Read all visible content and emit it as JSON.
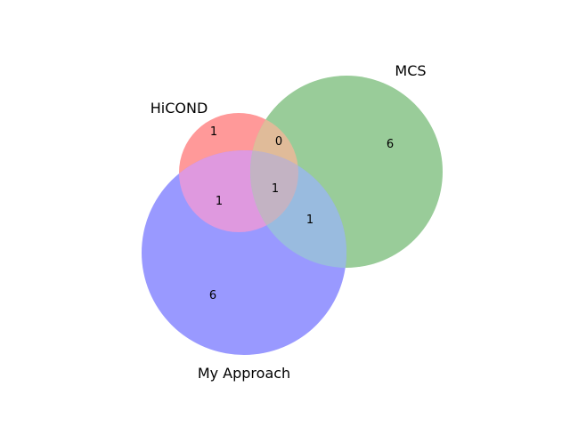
{
  "sets": [
    {
      "key": "hicond",
      "name": "HiCOND",
      "color": "#ff9999"
    },
    {
      "key": "mcs",
      "name": "MCS",
      "color": "#99cc99"
    },
    {
      "key": "approach",
      "name": "My Approach",
      "color": "#9999ff"
    }
  ],
  "overlap_colors": {
    "hicond_mcs": "#e0bb99",
    "hicond_approach": "#df99df",
    "mcs_approach": "#99bbdf",
    "all_three": "#c3b3c3"
  },
  "regions": {
    "hicond_only": "1",
    "mcs_only": "6",
    "approach_only": "6",
    "hicond_mcs": "0",
    "hicond_approach": "1",
    "mcs_approach": "1",
    "all_three": "1"
  }
}
